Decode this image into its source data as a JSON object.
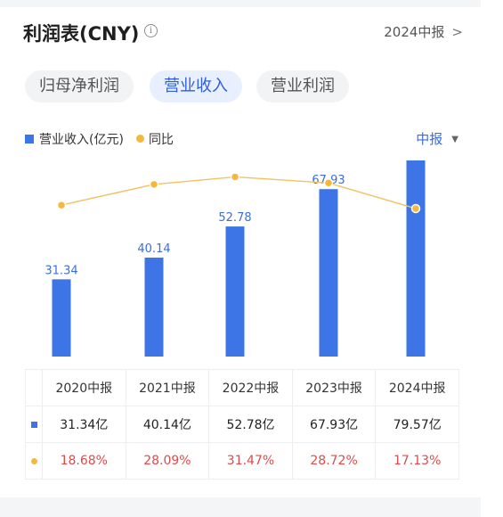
{
  "header": {
    "title": "利润表(CNY)",
    "info_icon": "info-icon",
    "period_link": "2024中报",
    "period_chevron": ">"
  },
  "tabs": [
    {
      "label": "归母净利润",
      "active": false
    },
    {
      "label": "营业收入",
      "active": true
    },
    {
      "label": "营业利润",
      "active": false
    }
  ],
  "legend": {
    "revenue": "营业收入(亿元)",
    "yoy": "同比"
  },
  "period_select": {
    "label": "中报",
    "caret": "▼"
  },
  "colors": {
    "bar": "#3d74e6",
    "line": "#f5b83d",
    "accent": "#2f5fd8",
    "negative_red": "#e04a4a"
  },
  "chart_data": {
    "type": "bar",
    "categories": [
      "2020中报",
      "2021中报",
      "2022中报",
      "2023中报",
      "2024中报"
    ],
    "series": [
      {
        "name": "营业收入(亿元)",
        "type": "bar",
        "values": [
          31.34,
          40.14,
          52.78,
          67.93,
          79.57
        ]
      },
      {
        "name": "同比",
        "type": "line",
        "values": [
          18.68,
          28.09,
          31.47,
          28.72,
          17.13
        ]
      }
    ],
    "ylim": [
      0,
      85
    ],
    "ylim_yoy": [
      -50,
      45
    ],
    "grid": false,
    "legend_position": "top-left"
  },
  "table": {
    "headers": [
      "2020中报",
      "2021中报",
      "2022中报",
      "2023中报",
      "2024中报"
    ],
    "revenue": [
      "31.34亿",
      "40.14亿",
      "52.78亿",
      "67.93亿",
      "79.57亿"
    ],
    "yoy": [
      "18.68%",
      "28.09%",
      "31.47%",
      "28.72%",
      "17.13%"
    ]
  }
}
